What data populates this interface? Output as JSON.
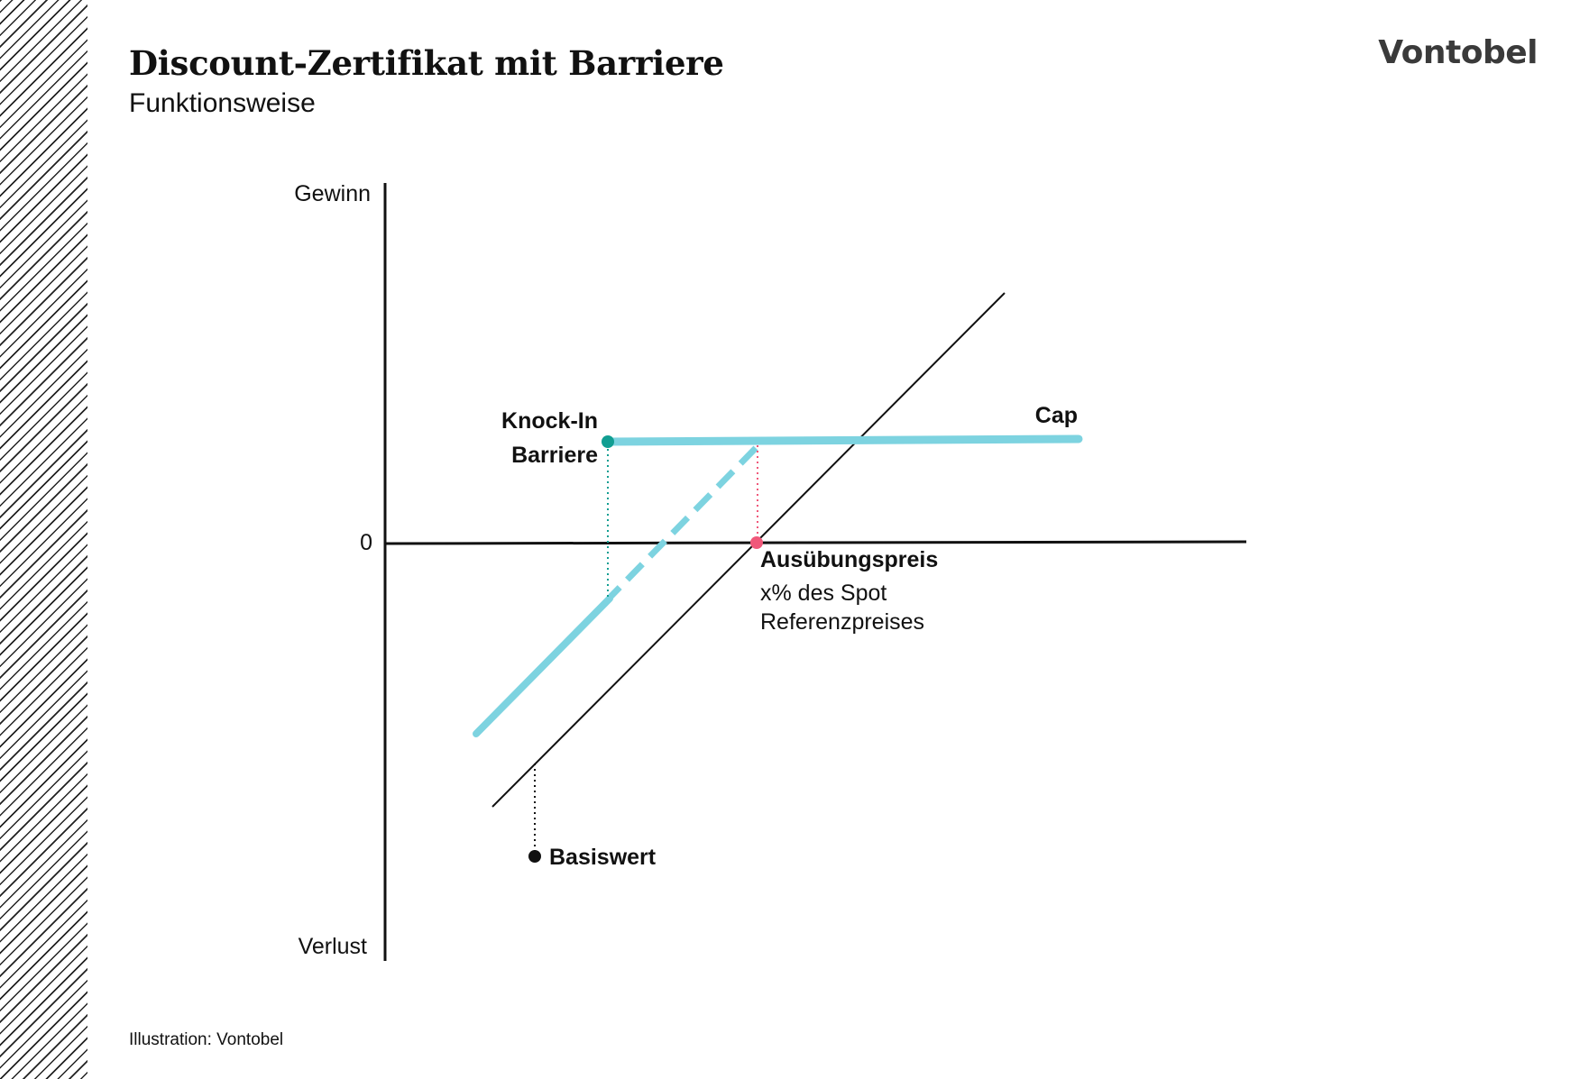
{
  "header": {
    "title": "Discount-Zertifikat mit Barriere",
    "subtitle": "Funktionsweise",
    "brand": "Vontobel"
  },
  "diagram": {
    "y_axis_top_label": "Gewinn",
    "y_axis_bottom_label": "Verlust",
    "zero_label": "0",
    "knock_in_label_line1": "Knock-In",
    "knock_in_label_line2": "Barriere",
    "cap_label": "Cap",
    "strike_label": "Ausübungspreis",
    "strike_note_line1": "x% des Spot",
    "strike_note_line2": "Referenzpreises",
    "underlying_label": "Basiswert"
  },
  "colors": {
    "certificate": "#7dd3e0",
    "barrier_marker": "#119e92",
    "strike_marker": "#f0587a",
    "axis": "#111111"
  },
  "footer": {
    "credit": "Illustration: Vontobel"
  }
}
